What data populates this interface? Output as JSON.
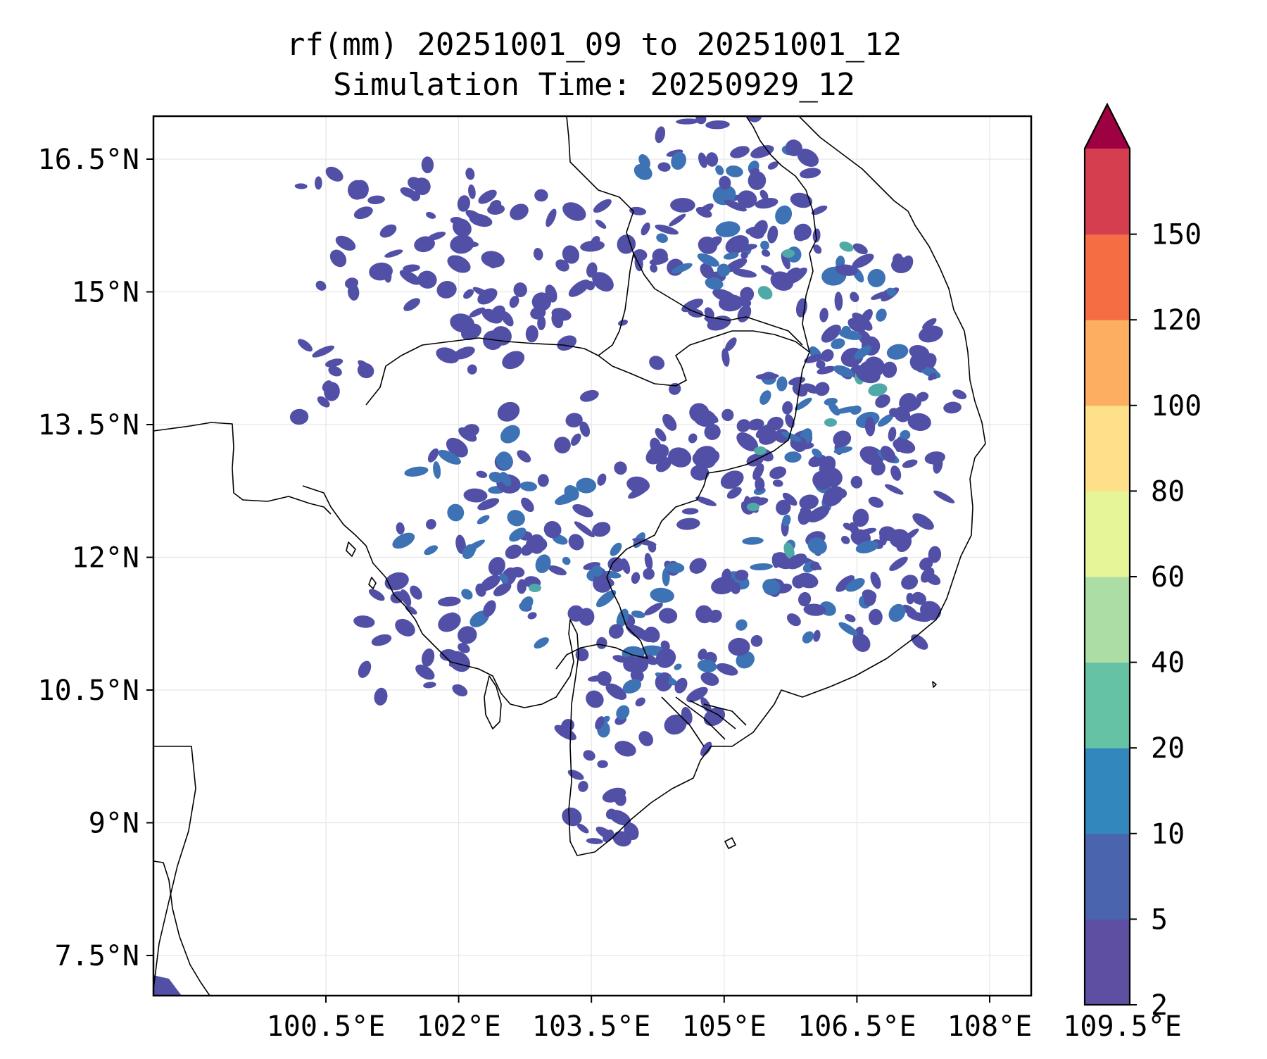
{
  "figure": {
    "title_line1": "rf(mm) 20251001_09 to 20251001_12",
    "title_line2": "Simulation Time: 20250929_12"
  },
  "axes": {
    "x_ticks": [
      "100.5°E",
      "102°E",
      "103.5°E",
      "105°E",
      "106.5°E",
      "108°E",
      "109.5°E"
    ],
    "y_ticks": [
      "16.5°N",
      "15°N",
      "13.5°N",
      "12°N",
      "10.5°N",
      "9°N",
      "7.5°N"
    ],
    "lon_range": [
      98.55,
      108.45
    ],
    "lat_range": [
      7.0,
      16.9
    ],
    "grid": true
  },
  "colorbar": {
    "levels": [
      "2",
      "5",
      "10",
      "20",
      "40",
      "60",
      "80",
      "100",
      "120",
      "150"
    ],
    "colors": [
      "#5e4fa2",
      "#4a65ae",
      "#3288bd",
      "#66c2a5",
      "#abdda4",
      "#e6f598",
      "#fee08b",
      "#fdae61",
      "#f46d43",
      "#d53e4f"
    ],
    "extend_color": "#9e0142",
    "extend": "max"
  },
  "rain_colors": {
    "light": "#5150a6",
    "moderate": "#3d73b4",
    "heavy": "#4fa9a6",
    "very_heavy": "#8fd09d"
  }
}
